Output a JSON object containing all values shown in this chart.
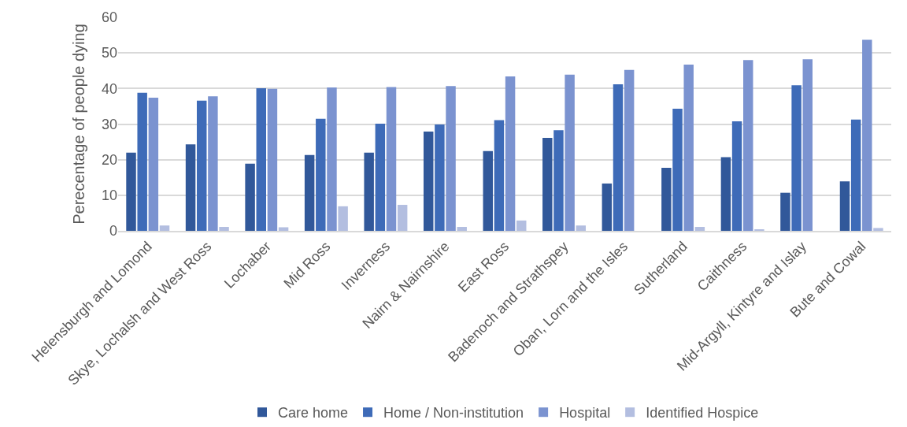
{
  "chart_data": {
    "type": "bar",
    "ylabel": "Perecentage of people dying",
    "categories": [
      "Helensburgh and Lomond",
      "Skye, Lochalsh and West Ross",
      "Lochaber",
      "Mid Ross",
      "Inverness",
      "Nairn & Nairnshire",
      "East Ross",
      "Badenoch and Strathspey",
      "Oban, Lorn and the Isles",
      "Sutherland",
      "Caithness",
      "Mid-Argyll, Kintyre and Islay",
      "Bute and Cowal"
    ],
    "series": [
      {
        "name": "Care home",
        "color": "#31589a",
        "values": [
          22.0,
          24.3,
          18.9,
          21.3,
          22.0,
          27.9,
          22.4,
          26.1,
          13.3,
          17.7,
          20.7,
          10.7,
          13.9
        ]
      },
      {
        "name": "Home / Non-institution",
        "color": "#3e6bb8",
        "values": [
          38.8,
          36.6,
          40.1,
          31.5,
          30.1,
          29.9,
          31.1,
          28.3,
          41.2,
          34.3,
          30.8,
          40.9,
          31.3
        ]
      },
      {
        "name": "Hospital",
        "color": "#7b93d0",
        "values": [
          37.4,
          37.8,
          39.9,
          40.3,
          40.4,
          40.7,
          43.4,
          43.9,
          45.2,
          46.7,
          48.0,
          48.2,
          53.7
        ]
      },
      {
        "name": "Identified Hospice",
        "color": "#b3bee0",
        "values": [
          1.5,
          1.1,
          1.0,
          6.9,
          7.3,
          1.1,
          2.9,
          1.5,
          0,
          1.1,
          0.3,
          0,
          0.8
        ]
      }
    ],
    "ylim": [
      0,
      60
    ],
    "yticks": [
      0,
      10,
      20,
      30,
      40,
      50,
      60
    ],
    "grid": "y",
    "legend": "bottom"
  }
}
